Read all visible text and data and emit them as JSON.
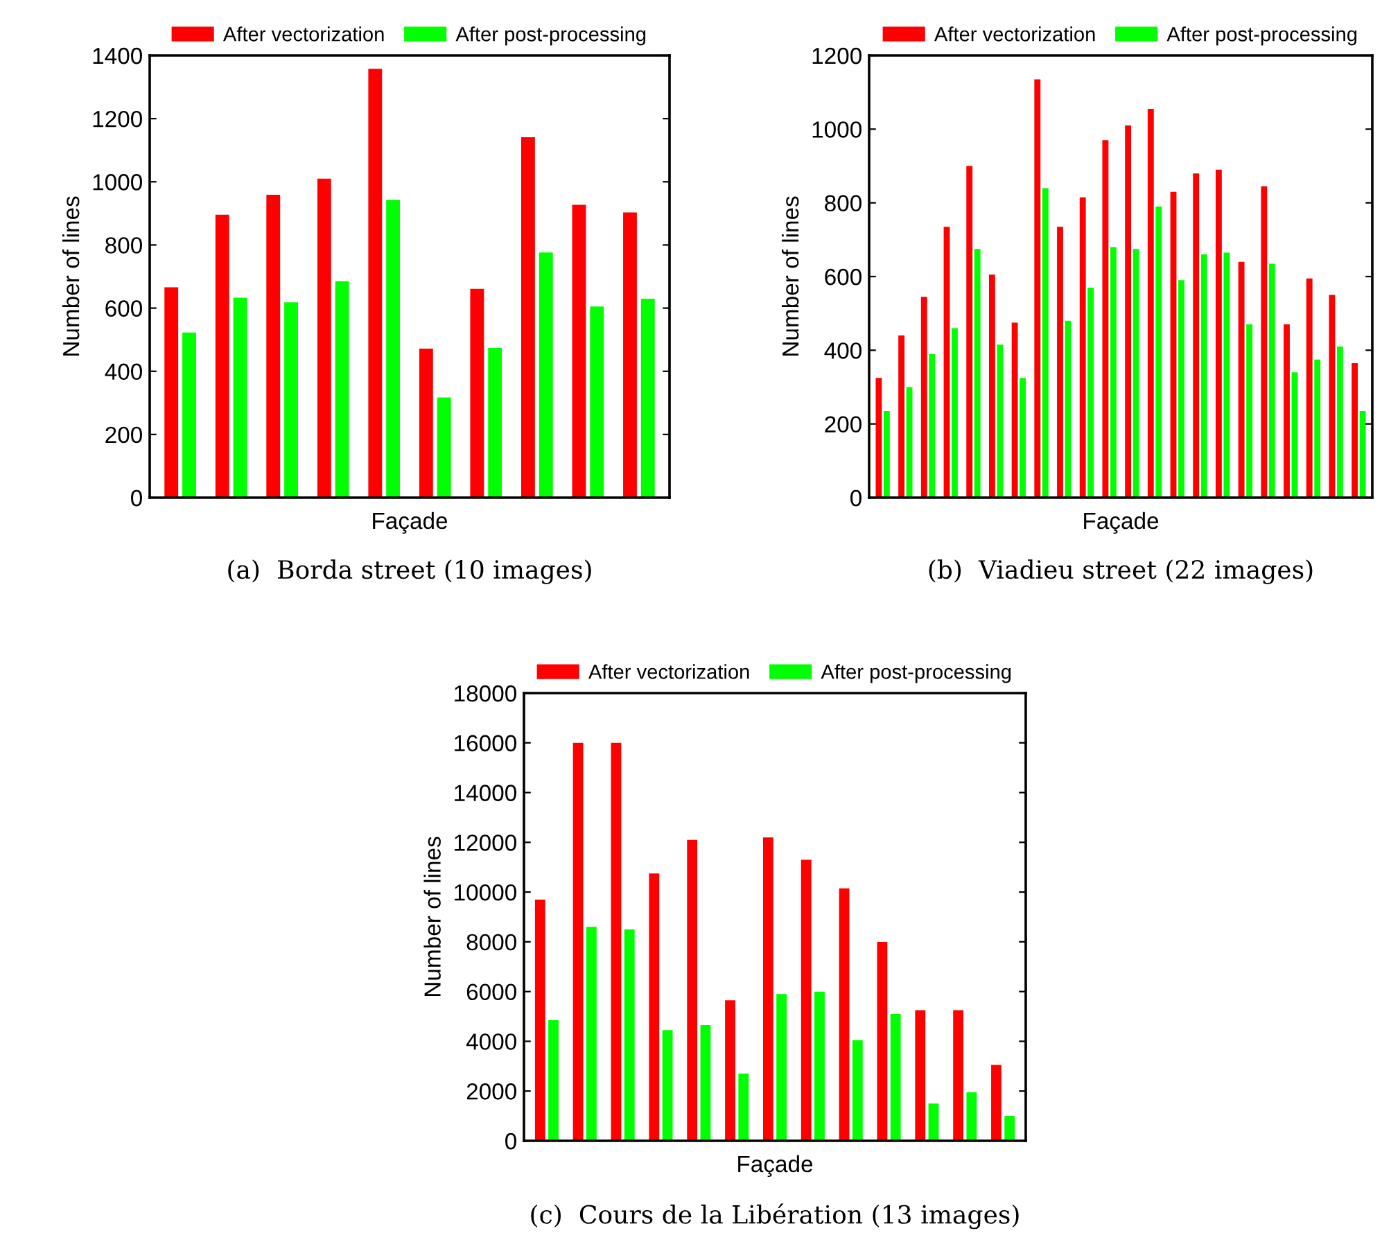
{
  "chart_data": [
    {
      "type": "bar",
      "xlabel": "Façade",
      "ylabel": "Number of lines",
      "annotations": [
        "(a)  Borda street (10 images)"
      ],
      "categories": [
        null,
        null,
        null,
        null,
        null,
        null,
        null,
        null,
        null,
        null
      ],
      "series": [
        {
          "name": "After vectorization",
          "color": "#ff0000",
          "values": [
            666,
            896,
            959,
            1010,
            1358,
            472,
            661,
            1141,
            927,
            903
          ]
        },
        {
          "name": "After post-processing",
          "color": "#00ff00",
          "values": [
            523,
            633,
            618,
            685,
            943,
            317,
            474,
            776,
            605,
            630
          ]
        }
      ],
      "ylim": [
        0,
        1400
      ],
      "yticks": [
        0,
        200,
        400,
        600,
        800,
        1000,
        1200,
        1400
      ],
      "legend": "top",
      "grid": false
    },
    {
      "type": "bar",
      "xlabel": "Façade",
      "ylabel": "Number of lines",
      "annotations": [
        "(b)  Viadieu street (22 images)"
      ],
      "categories": [
        null,
        null,
        null,
        null,
        null,
        null,
        null,
        null,
        null,
        null,
        null,
        null,
        null,
        null,
        null,
        null,
        null,
        null,
        null,
        null,
        null,
        null
      ],
      "series": [
        {
          "name": "After vectorization",
          "color": "#ff0000",
          "values": [
            325,
            440,
            545,
            735,
            900,
            605,
            475,
            1135,
            735,
            815,
            970,
            1010,
            1055,
            830,
            880,
            890,
            640,
            845,
            470,
            595,
            550,
            365
          ]
        },
        {
          "name": "After post-processing",
          "color": "#00ff00",
          "values": [
            235,
            300,
            390,
            460,
            675,
            415,
            325,
            840,
            480,
            570,
            680,
            675,
            790,
            590,
            660,
            665,
            470,
            635,
            340,
            375,
            410,
            235
          ]
        }
      ],
      "ylim": [
        0,
        1200
      ],
      "yticks": [
        0,
        200,
        400,
        600,
        800,
        1000,
        1200
      ],
      "legend": "top",
      "grid": false
    },
    {
      "type": "bar",
      "xlabel": "Façade",
      "ylabel": "Number of lines",
      "annotations": [
        "(c)  Cours de la Libération (13 images)"
      ],
      "categories": [
        null,
        null,
        null,
        null,
        null,
        null,
        null,
        null,
        null,
        null,
        null,
        null,
        null
      ],
      "series": [
        {
          "name": "After vectorization",
          "color": "#ff0000",
          "values": [
            9700,
            16000,
            16000,
            10750,
            12100,
            5650,
            12200,
            11300,
            10150,
            8000,
            5250,
            5250,
            3050
          ]
        },
        {
          "name": "After post-processing",
          "color": "#00ff00",
          "values": [
            4850,
            8600,
            8500,
            4450,
            4650,
            2700,
            5900,
            6000,
            4050,
            5100,
            1500,
            1950,
            1000
          ]
        }
      ],
      "ylim": [
        0,
        18000
      ],
      "yticks": [
        0,
        2000,
        4000,
        6000,
        8000,
        10000,
        12000,
        14000,
        16000,
        18000
      ],
      "legend": "top",
      "grid": false
    }
  ]
}
